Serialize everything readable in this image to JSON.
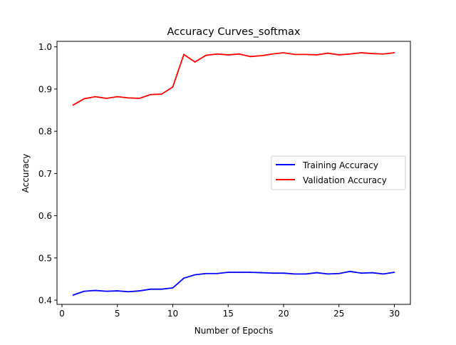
{
  "chart_data": {
    "type": "line",
    "title": "Accuracy Curves_softmax",
    "xlabel": "Number of Epochs",
    "ylabel": "Accuracy",
    "xlim": [
      -0.45,
      31.45
    ],
    "ylim": [
      0.39,
      1.013
    ],
    "xticks": [
      0,
      5,
      10,
      15,
      20,
      25,
      30
    ],
    "yticks": [
      0.4,
      0.5,
      0.6,
      0.7,
      0.8,
      0.9,
      1.0
    ],
    "xtick_labels": [
      "0",
      "5",
      "10",
      "15",
      "20",
      "25",
      "30"
    ],
    "ytick_labels": [
      "0.4",
      "0.5",
      "0.6",
      "0.7",
      "0.8",
      "0.9",
      "1.0"
    ],
    "grid": false,
    "legend_position": "center-right",
    "x": [
      1,
      2,
      3,
      4,
      5,
      6,
      7,
      8,
      9,
      10,
      11,
      12,
      13,
      14,
      15,
      16,
      17,
      18,
      19,
      20,
      21,
      22,
      23,
      24,
      25,
      26,
      27,
      28,
      29,
      30
    ],
    "series": [
      {
        "name": "Training Accuracy",
        "color": "#0000ff",
        "values": [
          0.412,
          0.421,
          0.423,
          0.421,
          0.422,
          0.42,
          0.422,
          0.426,
          0.426,
          0.429,
          0.452,
          0.46,
          0.463,
          0.463,
          0.466,
          0.466,
          0.466,
          0.465,
          0.464,
          0.464,
          0.462,
          0.462,
          0.465,
          0.462,
          0.463,
          0.468,
          0.464,
          0.465,
          0.462,
          0.466
        ]
      },
      {
        "name": "Validation Accuracy",
        "color": "#ff0000",
        "values": [
          0.862,
          0.877,
          0.882,
          0.878,
          0.882,
          0.879,
          0.878,
          0.887,
          0.888,
          0.905,
          0.982,
          0.964,
          0.98,
          0.983,
          0.981,
          0.983,
          0.977,
          0.979,
          0.983,
          0.986,
          0.982,
          0.982,
          0.981,
          0.985,
          0.981,
          0.983,
          0.986,
          0.984,
          0.983,
          0.986
        ]
      }
    ]
  }
}
